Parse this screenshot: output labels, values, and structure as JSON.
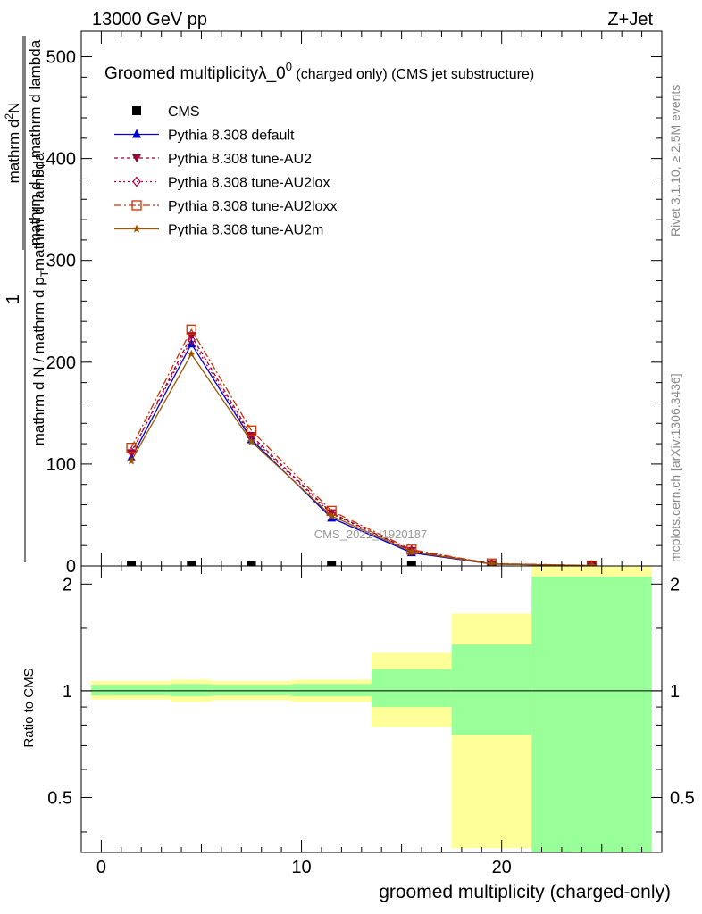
{
  "header": {
    "left": "13000 GeV pp",
    "right": "Z+Jet"
  },
  "side_labels": {
    "rivet": "Rivet 3.1.10, ≥ 2.5M events",
    "site": "mcplots.cern.ch [arXiv:1306.3436]"
  },
  "watermark": "CMS_2021_I1920187",
  "main_title_part1": "Groomed multiplicityλ_0",
  "main_title_sup": "0",
  "main_title_part2": " (charged only) (CMS jet substructure)",
  "ylabel_num": "1",
  "ylabel_den": "mathrm d N / mathrm d p",
  "ylabel_den_sub": "T",
  "ylabel_den2": "mathrm d lambda",
  "ylabel_top": "mathrm d",
  "ylabel_top_sup": "2",
  "ylabel_top2": "N",
  "ylabel_bottom": "mathrm d p",
  "ylabel_bottom_sub": "T",
  "ylabel_bottom2": " mathrm d lambda",
  "ratio_ylabel": "Ratio to CMS",
  "xlabel": "groomed multiplicity (charged-only)",
  "colors": {
    "cms": "#000000",
    "default": "#0000cc",
    "au2": "#990033",
    "au2lox": "#aa0044",
    "au2loxx": "#cc3300",
    "au2m": "#995500",
    "band_inner": "#99ff99",
    "band_outer": "#ffff99"
  },
  "chart_data": [
    {
      "type": "line",
      "panel": "main",
      "x_range": [
        -1,
        28
      ],
      "ylim": [
        0,
        525
      ],
      "y_ticks": [
        0,
        100,
        200,
        300,
        400,
        500
      ],
      "x": [
        1.5,
        4.5,
        7.5,
        11.5,
        15.5,
        19.5,
        24.5
      ],
      "legend": [
        {
          "name": "CMS",
          "key": "cms",
          "marker": "square",
          "dash": ""
        },
        {
          "name": "Pythia 8.308 default",
          "key": "default",
          "marker": "triangle",
          "dash": ""
        },
        {
          "name": "Pythia 8.308 tune-AU2",
          "key": "au2",
          "marker": "triangle-down",
          "dash": "4,3"
        },
        {
          "name": "Pythia 8.308 tune-AU2lox",
          "key": "au2lox",
          "marker": "diamond",
          "dash": "2,3"
        },
        {
          "name": "Pythia 8.308 tune-AU2loxx",
          "key": "au2loxx",
          "marker": "square-open",
          "dash": "8,3,2,3"
        },
        {
          "name": "Pythia 8.308 tune-AU2m",
          "key": "au2m",
          "marker": "star",
          "dash": ""
        }
      ],
      "series": [
        {
          "name": "CMS",
          "key": "cms",
          "values": [
            0.5,
            0.5,
            0.5,
            0.5,
            0.5,
            0.5,
            0.5
          ]
        },
        {
          "name": "Pythia 8.308 default",
          "key": "default",
          "values": [
            106,
            218,
            124,
            47,
            13,
            1.8,
            0.3
          ]
        },
        {
          "name": "Pythia 8.308 tune-AU2",
          "key": "au2",
          "values": [
            111,
            226,
            128,
            52,
            15,
            2.2,
            0.3
          ]
        },
        {
          "name": "Pythia 8.308 tune-AU2lox",
          "key": "au2lox",
          "values": [
            112,
            222,
            126,
            51,
            15,
            2.0,
            0.3
          ]
        },
        {
          "name": "Pythia 8.308 tune-AU2loxx",
          "key": "au2loxx",
          "values": [
            116,
            232,
            133,
            54,
            16,
            2.4,
            0.4
          ]
        },
        {
          "name": "Pythia 8.308 tune-AU2m",
          "key": "au2m",
          "values": [
            103,
            208,
            122,
            49,
            14,
            1.9,
            0.3
          ]
        }
      ]
    },
    {
      "type": "area",
      "panel": "ratio",
      "x_range": [
        -1,
        28
      ],
      "ylim": [
        0.35,
        2.25
      ],
      "y_ticks": [
        0.5,
        1,
        2
      ],
      "y_tick_labels": [
        "0.5",
        "1",
        "2"
      ],
      "x_ticks": [
        0,
        10,
        20
      ],
      "x_tick_labels": [
        "0",
        "10",
        "20"
      ],
      "reference": 1,
      "bands": [
        {
          "x0": -0.5,
          "x1": 3.5,
          "inner": [
            0.97,
            1.04
          ],
          "outer": [
            0.945,
            1.065
          ]
        },
        {
          "x0": 3.5,
          "x1": 5.5,
          "inner": [
            0.965,
            1.045
          ],
          "outer": [
            0.93,
            1.075
          ]
        },
        {
          "x0": 5.5,
          "x1": 9.5,
          "inner": [
            0.97,
            1.04
          ],
          "outer": [
            0.94,
            1.065
          ]
        },
        {
          "x0": 9.5,
          "x1": 13.5,
          "inner": [
            0.965,
            1.045
          ],
          "outer": [
            0.93,
            1.075
          ]
        },
        {
          "x0": 13.5,
          "x1": 17.5,
          "inner": [
            0.9,
            1.15
          ],
          "outer": [
            0.79,
            1.28
          ]
        },
        {
          "x0": 17.5,
          "x1": 21.5,
          "inner": [
            0.75,
            1.35
          ],
          "outer": [
            0.36,
            1.65
          ]
        },
        {
          "x0": 21.5,
          "x1": 27.5,
          "inner": [
            0.35,
            2.1
          ],
          "outer": [
            0.35,
            2.25
          ]
        }
      ]
    }
  ]
}
